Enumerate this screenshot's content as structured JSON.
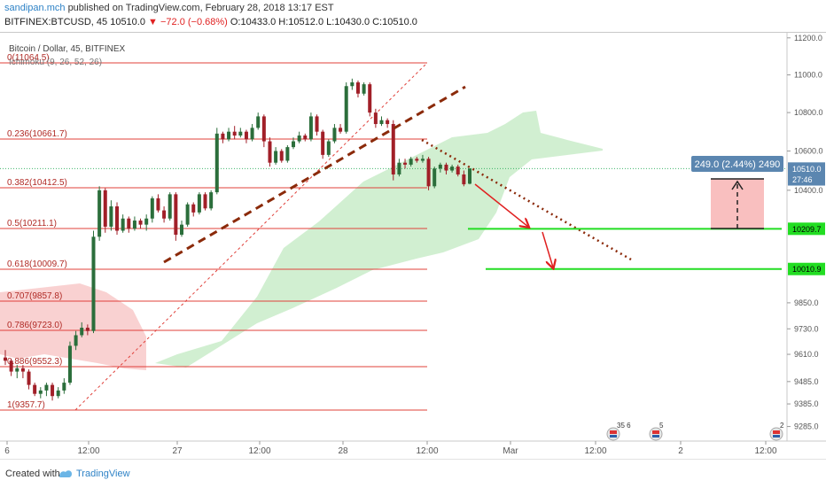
{
  "header": {
    "author": "sandipan.mch",
    "published": "published on TradingView.com, February 28, 2018 13:17 EST",
    "symbol": "BITFINEX:BTCUSD, 45",
    "last": "10510.0",
    "change": "▼ −72.0 (−0.68%)",
    "ohlc": "O:10433.0 H:10512.0 L:10430.0 C:10510.0"
  },
  "chart_title": "Bitcoin / Dollar, 45, BITFINEX",
  "indicator_label": "Ichimoku (9, 26, 52, 26)",
  "footer": {
    "created_with": "Created with",
    "brand": "TradingView"
  },
  "colors": {
    "up_candle": "#2b6e3b",
    "down_candle": "#a11f28",
    "fib_line": "#e0403a",
    "trend_line": "#8b2a0a",
    "support_line": "#22dd22",
    "cloud_green": "#c9ecc9",
    "cloud_red": "#f7c6c6",
    "price_tag": "#5b86b0",
    "projection_box": "#f8b4b4"
  },
  "chart_data": {
    "type": "candlestick",
    "symbol": "BITFINEX:BTCUSD",
    "interval": "45",
    "yaxis": {
      "ticks": [
        "11200.0",
        "11000.0",
        "10800.0",
        "10600.0",
        "10400.0",
        "9850.0",
        "9730.0",
        "9610.0",
        "9485.0",
        "9385.0",
        "9285.0"
      ],
      "scale": "log"
    },
    "xaxis": {
      "ticks": [
        "6",
        "12:00",
        "27",
        "12:00",
        "28",
        "12:00",
        "Mar",
        "12:00",
        "2",
        "12:00"
      ]
    },
    "fib_levels": [
      {
        "label": "0(11064.5)",
        "value": 11064.5
      },
      {
        "label": "0.236(10661.7)",
        "value": 10661.7
      },
      {
        "label": "0.382(10412.5)",
        "value": 10412.5
      },
      {
        "label": "0.5(10211.1)",
        "value": 10211.1
      },
      {
        "label": "0.618(10009.7)",
        "value": 10009.7
      },
      {
        "label": "0.707(9857.8)",
        "value": 9857.8
      },
      {
        "label": "0.786(9723.0)",
        "value": 9723.0
      },
      {
        "label": "0.886(9552.3)",
        "value": 9552.3
      },
      {
        "label": "1(9357.7)",
        "value": 9357.7
      }
    ],
    "price_labels": [
      {
        "text": "10510.0",
        "value": 10510.0,
        "color": "#5b86b0"
      },
      {
        "text": "27:46",
        "value": 10455.0,
        "color": "#5b86b0"
      },
      {
        "text": "10209.7",
        "value": 10209.7,
        "color": "#22dd22"
      },
      {
        "text": "10010.9",
        "value": 10010.9,
        "color": "#22dd22"
      }
    ],
    "projection_label": "249.0 (2.44%) 2490",
    "support_levels": [
      10209.7,
      10010.9
    ],
    "events": [
      {
        "label": "35 6"
      },
      {
        "label": "5"
      },
      {
        "label": "2"
      }
    ],
    "candles": [
      [
        9595,
        9580,
        9630,
        9560
      ],
      [
        9580,
        9530,
        9590,
        9510
      ],
      [
        9530,
        9545,
        9560,
        9500
      ],
      [
        9545,
        9530,
        9560,
        9500
      ],
      [
        9530,
        9470,
        9540,
        9450
      ],
      [
        9470,
        9430,
        9480,
        9420
      ],
      [
        9430,
        9445,
        9460,
        9410
      ],
      [
        9445,
        9470,
        9480,
        9420
      ],
      [
        9470,
        9420,
        9480,
        9400
      ],
      [
        9420,
        9445,
        9460,
        9410
      ],
      [
        9445,
        9480,
        9500,
        9430
      ],
      [
        9480,
        9650,
        9670,
        9470
      ],
      [
        9650,
        9700,
        9720,
        9630
      ],
      [
        9700,
        9735,
        9760,
        9690
      ],
      [
        9735,
        9720,
        9750,
        9700
      ],
      [
        9720,
        10170,
        10200,
        9710
      ],
      [
        10170,
        10400,
        10420,
        10150
      ],
      [
        10400,
        10220,
        10410,
        10190
      ],
      [
        10220,
        10320,
        10350,
        10200
      ],
      [
        10320,
        10200,
        10340,
        10180
      ],
      [
        10200,
        10260,
        10280,
        10190
      ],
      [
        10260,
        10210,
        10270,
        10190
      ],
      [
        10210,
        10250,
        10270,
        10200
      ],
      [
        10250,
        10230,
        10260,
        10210
      ],
      [
        10230,
        10260,
        10280,
        10200
      ],
      [
        10260,
        10360,
        10370,
        10240
      ],
      [
        10360,
        10300,
        10380,
        10290
      ],
      [
        10300,
        10260,
        10320,
        10240
      ],
      [
        10260,
        10380,
        10390,
        10250
      ],
      [
        10380,
        10180,
        10390,
        10150
      ],
      [
        10180,
        10230,
        10250,
        10170
      ],
      [
        10230,
        10330,
        10340,
        10220
      ],
      [
        10330,
        10290,
        10340,
        10270
      ],
      [
        10290,
        10380,
        10390,
        10280
      ],
      [
        10380,
        10310,
        10390,
        10300
      ],
      [
        10310,
        10390,
        10400,
        10300
      ],
      [
        10390,
        10690,
        10720,
        10380
      ],
      [
        10690,
        10660,
        10700,
        10640
      ],
      [
        10660,
        10700,
        10720,
        10650
      ],
      [
        10700,
        10680,
        10730,
        10660
      ],
      [
        10680,
        10700,
        10720,
        10670
      ],
      [
        10700,
        10660,
        10710,
        10640
      ],
      [
        10660,
        10720,
        10740,
        10650
      ],
      [
        10720,
        10780,
        10800,
        10710
      ],
      [
        10780,
        10650,
        10790,
        10620
      ],
      [
        10650,
        10540,
        10670,
        10520
      ],
      [
        10540,
        10600,
        10620,
        10530
      ],
      [
        10600,
        10550,
        10610,
        10540
      ],
      [
        10550,
        10620,
        10630,
        10540
      ],
      [
        10620,
        10650,
        10670,
        10610
      ],
      [
        10650,
        10680,
        10700,
        10640
      ],
      [
        10680,
        10660,
        10690,
        10650
      ],
      [
        10660,
        10780,
        10800,
        10650
      ],
      [
        10780,
        10700,
        10790,
        10680
      ],
      [
        10700,
        10580,
        10710,
        10560
      ],
      [
        10580,
        10650,
        10660,
        10570
      ],
      [
        10650,
        10720,
        10740,
        10640
      ],
      [
        10720,
        10700,
        10740,
        10690
      ],
      [
        10700,
        10940,
        10960,
        10690
      ],
      [
        10940,
        10960,
        10980,
        10920
      ],
      [
        10960,
        10900,
        10970,
        10880
      ],
      [
        10900,
        10950,
        10960,
        10890
      ],
      [
        10950,
        10800,
        10960,
        10780
      ],
      [
        10800,
        10740,
        10820,
        10720
      ],
      [
        10740,
        10760,
        10780,
        10730
      ],
      [
        10760,
        10740,
        10770,
        10720
      ],
      [
        10740,
        10480,
        10760,
        10450
      ],
      [
        10480,
        10540,
        10560,
        10470
      ],
      [
        10540,
        10530,
        10560,
        10510
      ],
      [
        10530,
        10560,
        10570,
        10520
      ],
      [
        10560,
        10550,
        10570,
        10540
      ],
      [
        10550,
        10560,
        10580,
        10540
      ],
      [
        10560,
        10420,
        10570,
        10400
      ],
      [
        10420,
        10510,
        10520,
        10410
      ],
      [
        10510,
        10530,
        10540,
        10490
      ],
      [
        10530,
        10500,
        10540,
        10480
      ],
      [
        10500,
        10520,
        10530,
        10490
      ],
      [
        10520,
        10480,
        10530,
        10470
      ],
      [
        10480,
        10430,
        10500,
        10420
      ],
      [
        10433,
        10510,
        10512,
        10430
      ]
    ]
  }
}
